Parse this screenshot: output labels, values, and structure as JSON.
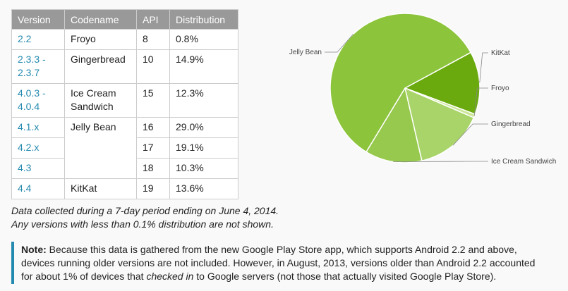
{
  "table": {
    "headers": [
      "Version",
      "Codename",
      "API",
      "Distribution"
    ],
    "rows": [
      {
        "versions": [
          "2.2"
        ],
        "codename": "Froyo",
        "api": "8",
        "dist": "0.8%"
      },
      {
        "versions": [
          "2.3.3 -",
          "2.3.7"
        ],
        "codename": "Gingerbread",
        "api": "10",
        "dist": "14.9%"
      },
      {
        "versions": [
          "4.0.3 -",
          "4.0.4"
        ],
        "codename": "Ice Cream",
        "codename2": "Sandwich",
        "api": "15",
        "dist": "12.3%"
      },
      {
        "versions": [
          "4.1.x"
        ],
        "codename": "Jelly Bean",
        "api": "16",
        "dist": "29.0%"
      },
      {
        "versions": [
          "4.2.x"
        ],
        "api": "17",
        "dist": "19.1%"
      },
      {
        "versions": [
          "4.3"
        ],
        "api": "18",
        "dist": "10.3%"
      },
      {
        "versions": [
          "4.4"
        ],
        "codename": "KitKat",
        "api": "19",
        "dist": "13.6%"
      }
    ]
  },
  "caption": {
    "line1": "Data collected during a 7-day period ending on June 4, 2014.",
    "line2": "Any versions with less than 0.1% distribution are not shown."
  },
  "note": {
    "label": "Note:",
    "text1": " Because this data is gathered from the new Google Play Store app, which supports Android 2.2 and above, devices running older versions are not included. However, in August, 2013, versions older than Android 2.2 accounted for about 1% of devices that ",
    "emph": "checked in",
    "text2": " to Google servers (not those that actually visited Google Play Store)."
  },
  "chart_data": {
    "type": "pie",
    "slices": [
      {
        "label": "KitKat",
        "value": 13.6,
        "color": "#6aaa0e"
      },
      {
        "label": "Froyo",
        "value": 0.8,
        "color": "#cce79a"
      },
      {
        "label": "Gingerbread",
        "value": 14.9,
        "color": "#a8d46a"
      },
      {
        "label": "Ice Cream Sandwich",
        "value": 12.3,
        "color": "#97c94e"
      },
      {
        "label": "Jelly Bean",
        "value": 58.4,
        "color": "#8cc43c"
      }
    ]
  }
}
